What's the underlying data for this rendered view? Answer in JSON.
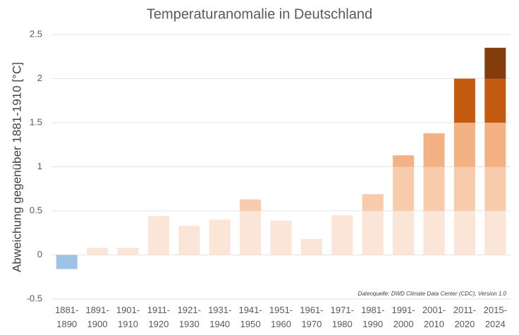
{
  "chart_data": {
    "type": "banded_bar",
    "title": "Temperaturanomalie in Deutschland",
    "y_label": "Abweichung gegenüber 1881-1910 [°C]",
    "source": "Datenquelle: DWD Climate Data Center (CDC), Version 1.0",
    "categories": [
      [
        "1881-",
        "1890"
      ],
      [
        "1891-",
        "1900"
      ],
      [
        "1901-",
        "1910"
      ],
      [
        "1911-",
        "1920"
      ],
      [
        "1921-",
        "1930"
      ],
      [
        "1931-",
        "1940"
      ],
      [
        "1941-",
        "1950"
      ],
      [
        "1951-",
        "1960"
      ],
      [
        "1961-",
        "1970"
      ],
      [
        "1971-",
        "1980"
      ],
      [
        "1981-",
        "1990"
      ],
      [
        "1991-",
        "2000"
      ],
      [
        "2001-",
        "2010"
      ],
      [
        "2011-",
        "2020"
      ],
      [
        "2015-",
        "2024"
      ]
    ],
    "values": [
      -0.16,
      0.08,
      0.08,
      0.44,
      0.33,
      0.4,
      0.63,
      0.39,
      0.18,
      0.45,
      0.69,
      1.13,
      1.38,
      2.0,
      2.35
    ],
    "negative_color": "#9dc3e6",
    "band_colors": [
      "#fbe5d6",
      "#f8cbad",
      "#f4b183",
      "#c55a11",
      "#843c0c"
    ],
    "ylim": [
      -0.5,
      2.5
    ],
    "yticks": [
      -0.5,
      0,
      0.5,
      1,
      1.5,
      2,
      2.5
    ],
    "grid": true
  }
}
